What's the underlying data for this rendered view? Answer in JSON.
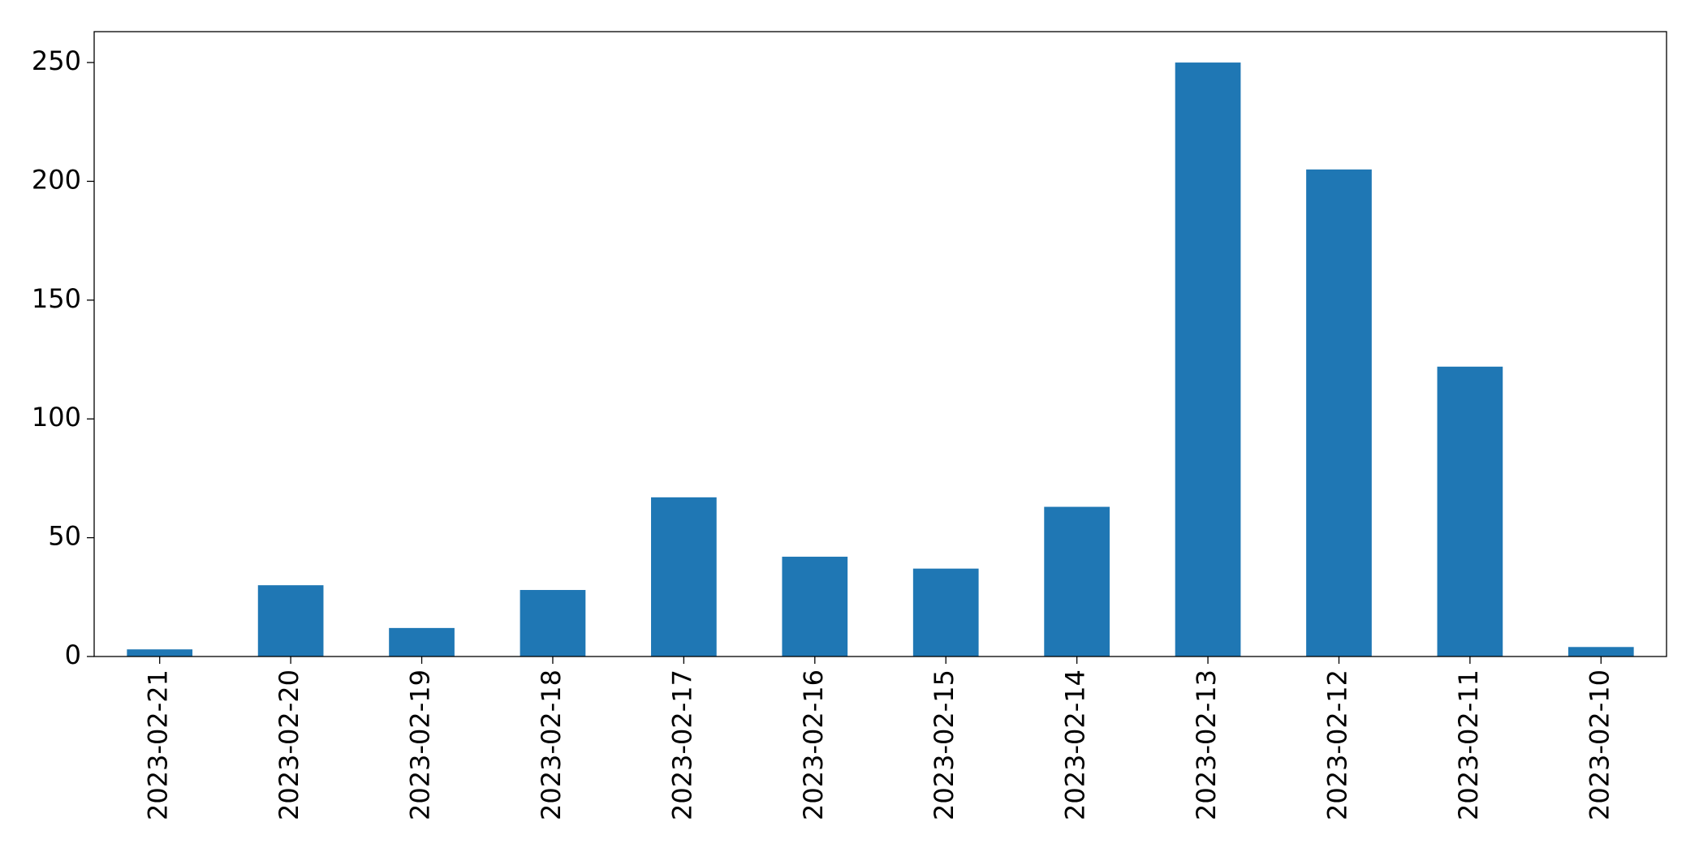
{
  "chart_data": {
    "type": "bar",
    "categories": [
      "2023-02-21",
      "2023-02-20",
      "2023-02-19",
      "2023-02-18",
      "2023-02-17",
      "2023-02-16",
      "2023-02-15",
      "2023-02-14",
      "2023-02-13",
      "2023-02-12",
      "2023-02-11",
      "2023-02-10"
    ],
    "values": [
      3,
      30,
      12,
      28,
      67,
      42,
      37,
      63,
      250,
      205,
      122,
      4
    ],
    "color": "#1f77b4",
    "ylim": [
      0,
      263
    ],
    "yticks": [
      0,
      50,
      100,
      150,
      200,
      250
    ],
    "grid": false
  }
}
